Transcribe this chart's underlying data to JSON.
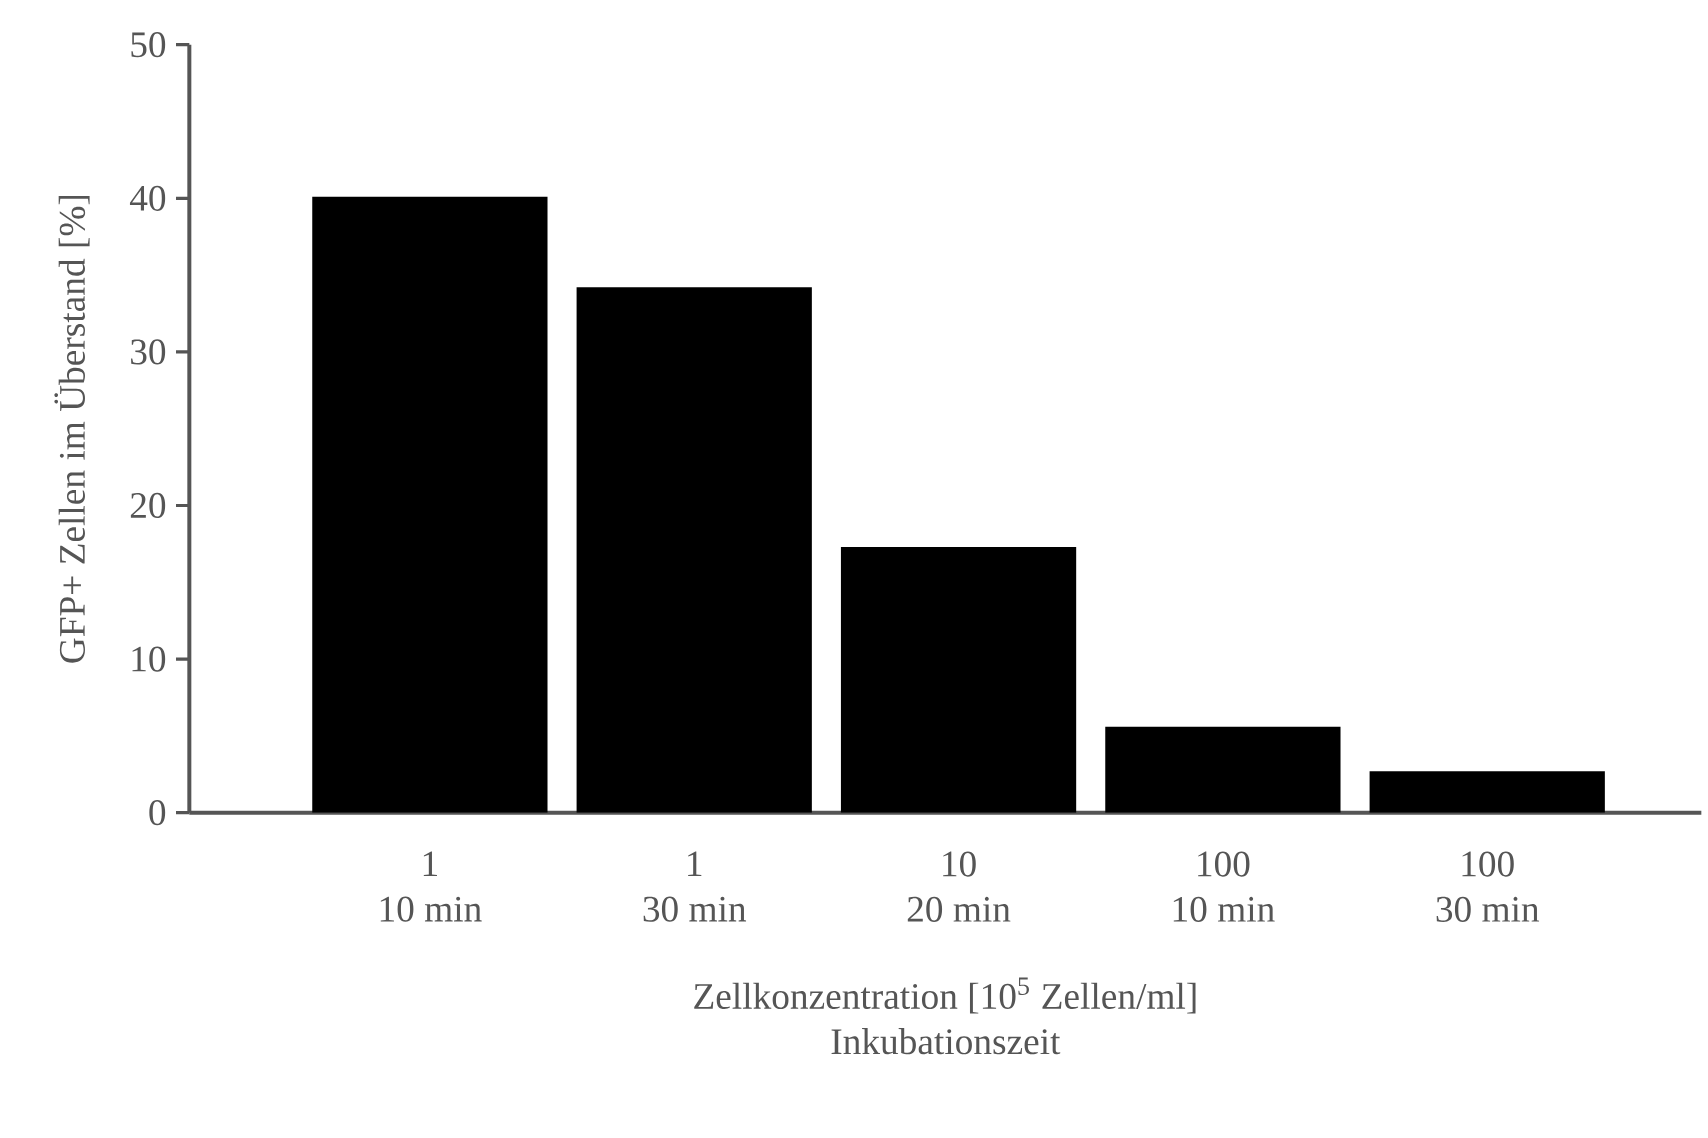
{
  "chart_data": {
    "type": "bar",
    "xlabel": "Zellkonzentration [10$^{5}$ Zellen/ml]\nInkubationszeit",
    "ylabel": "GFP+ Zellen im Überstand [%]",
    "categories": [
      "1\n10 min",
      "1\n30 min",
      "10\n20 min",
      "100\n10 min",
      "100\n30 min"
    ],
    "values": [
      40.1,
      34.2,
      17.3,
      5.6,
      2.7
    ],
    "color": "#000000",
    "ylim": [
      0,
      50
    ],
    "yticks": [
      0,
      10,
      20,
      30,
      40,
      50
    ],
    "grid": false
  }
}
